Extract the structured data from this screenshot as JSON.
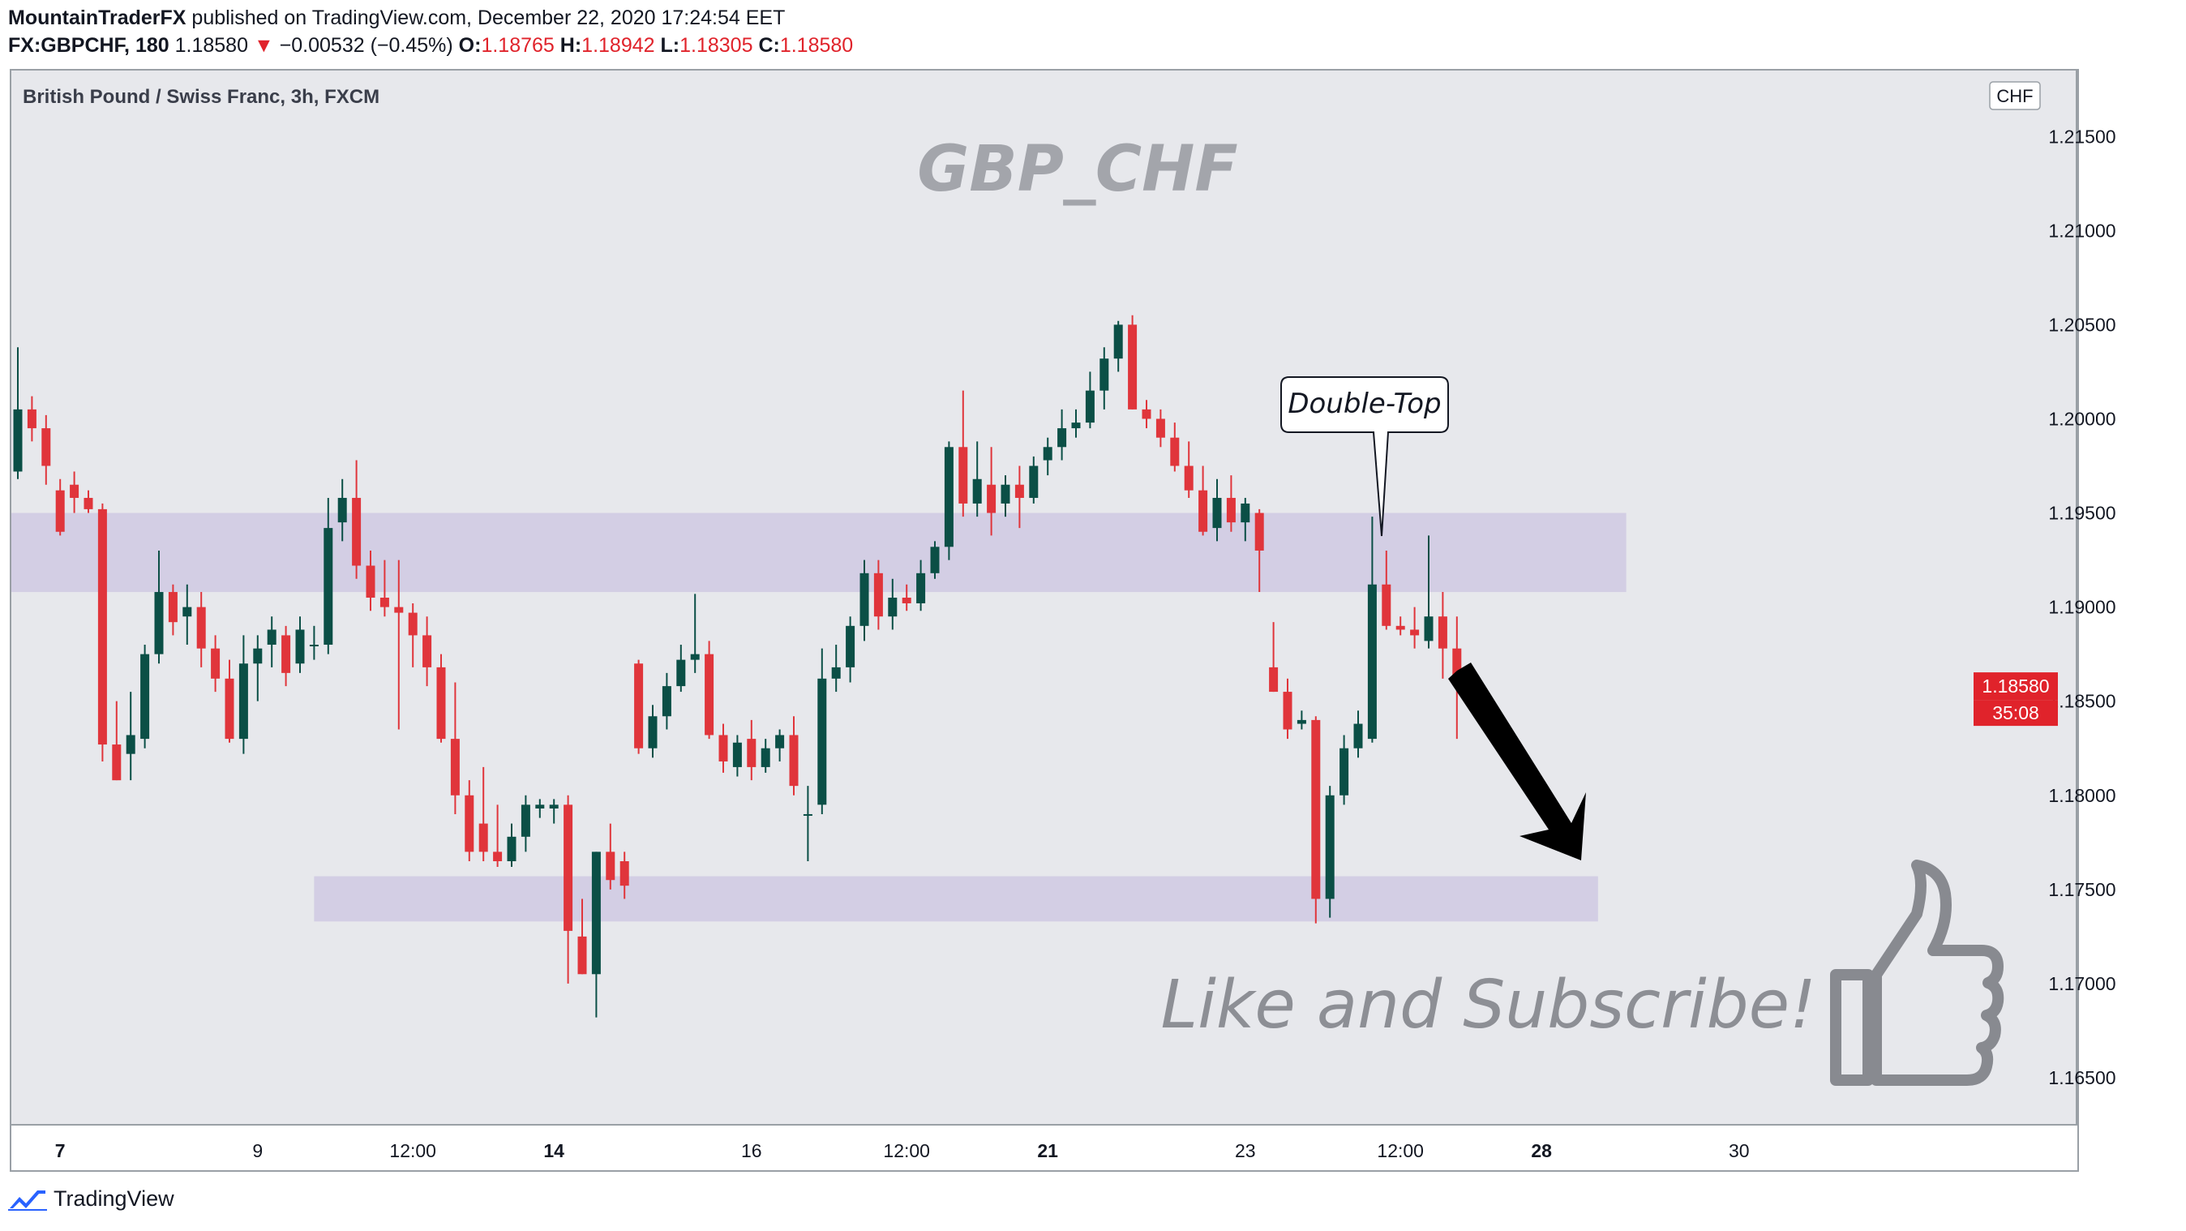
{
  "header": {
    "author": "MountainTraderFX",
    "published": " published on TradingView.com, December 22, 2020 17:24:54 EET",
    "symbol": "FX:GBPCHF, 180",
    "last": "1.18580",
    "change_arrow": "▼",
    "change": "−0.00532 (−0.45%)",
    "o_label": "O:",
    "o": "1.18765",
    "h_label": "H:",
    "h": "1.18942",
    "l_label": "L:",
    "l": "1.18305",
    "c_label": "C:",
    "c": "1.18580"
  },
  "footer": {
    "brand": "TradingView",
    "logo_icon": "tradingview-logo-icon"
  },
  "colors": {
    "up": "#0b4f46",
    "down": "#e0353b",
    "zone": "#cfc9e3",
    "bg": "#e7e8ec",
    "price_tag": "#e0232b"
  },
  "chart_data": {
    "type": "candlestick",
    "title": "British Pound / Swiss Franc, 3h, FXCM",
    "watermark": "GBP_CHF",
    "currency": "CHF",
    "ylim": [
      1.1625,
      1.2185
    ],
    "y_ticks": [
      "1.21500",
      "1.21000",
      "1.20500",
      "1.20000",
      "1.19500",
      "1.19000",
      "1.18500",
      "1.18000",
      "1.17500",
      "1.17000",
      "1.16500"
    ],
    "x_ticks": [
      {
        "label": "7",
        "i": 3
      },
      {
        "label": "9",
        "i": 17
      },
      {
        "label": "12:00",
        "i": 28
      },
      {
        "label": "14",
        "i": 38
      },
      {
        "label": "16",
        "i": 52
      },
      {
        "label": "12:00",
        "i": 63
      },
      {
        "label": "21",
        "i": 73
      },
      {
        "label": "23",
        "i": 87
      },
      {
        "label": "12:00",
        "i": 98
      },
      {
        "label": "28",
        "i": 108
      },
      {
        "label": "30",
        "i": 122
      }
    ],
    "current_price": "1.18580",
    "countdown": "35:08",
    "zones": [
      {
        "from": 1.1908,
        "to": 1.195,
        "i_start": -1,
        "i_end": 114
      },
      {
        "from": 1.1733,
        "to": 1.1757,
        "i_start": 21,
        "i_end": 112
      }
    ],
    "annotations": {
      "callout": "Double-Top",
      "cta": "Like and Subscribe!"
    },
    "candles": [
      [
        1.1972,
        1.2038,
        1.1968,
        1.2005
      ],
      [
        1.2005,
        1.2012,
        1.1988,
        1.1995
      ],
      [
        1.1995,
        1.2002,
        1.1965,
        1.1975
      ],
      [
        1.1962,
        1.1968,
        1.1938,
        1.194
      ],
      [
        1.1965,
        1.1972,
        1.195,
        1.1958
      ],
      [
        1.1958,
        1.1962,
        1.195,
        1.1952
      ],
      [
        1.1952,
        1.1955,
        1.1818,
        1.1827
      ],
      [
        1.1827,
        1.185,
        1.1808,
        1.1808
      ],
      [
        1.1822,
        1.1855,
        1.1808,
        1.1832
      ],
      [
        1.183,
        1.188,
        1.1825,
        1.1875
      ],
      [
        1.1875,
        1.193,
        1.187,
        1.1908
      ],
      [
        1.1908,
        1.1912,
        1.1885,
        1.1892
      ],
      [
        1.1895,
        1.1912,
        1.188,
        1.19
      ],
      [
        1.19,
        1.1908,
        1.1868,
        1.1878
      ],
      [
        1.1878,
        1.1885,
        1.1855,
        1.1862
      ],
      [
        1.1862,
        1.1872,
        1.1828,
        1.183
      ],
      [
        1.183,
        1.1885,
        1.1822,
        1.187
      ],
      [
        1.187,
        1.1885,
        1.185,
        1.1878
      ],
      [
        1.188,
        1.1895,
        1.1868,
        1.1888
      ],
      [
        1.1885,
        1.189,
        1.1858,
        1.1865
      ],
      [
        1.187,
        1.1895,
        1.1865,
        1.1888
      ],
      [
        1.188,
        1.189,
        1.1872,
        1.188
      ],
      [
        1.188,
        1.1958,
        1.1875,
        1.1942
      ],
      [
        1.1945,
        1.1968,
        1.1935,
        1.1958
      ],
      [
        1.1958,
        1.1978,
        1.1915,
        1.1922
      ],
      [
        1.1922,
        1.193,
        1.1898,
        1.1905
      ],
      [
        1.1905,
        1.1925,
        1.1895,
        1.19
      ],
      [
        1.19,
        1.1925,
        1.1835,
        1.1897
      ],
      [
        1.1897,
        1.1902,
        1.1868,
        1.1885
      ],
      [
        1.1885,
        1.1895,
        1.1858,
        1.1868
      ],
      [
        1.1868,
        1.1875,
        1.1828,
        1.183
      ],
      [
        1.183,
        1.186,
        1.179,
        1.18
      ],
      [
        1.18,
        1.1808,
        1.1765,
        1.177
      ],
      [
        1.1785,
        1.1815,
        1.1765,
        1.177
      ],
      [
        1.177,
        1.1795,
        1.1762,
        1.1765
      ],
      [
        1.1765,
        1.1785,
        1.1762,
        1.1778
      ],
      [
        1.1778,
        1.18,
        1.177,
        1.1795
      ],
      [
        1.1793,
        1.1798,
        1.1788,
        1.1795
      ],
      [
        1.1793,
        1.1798,
        1.1785,
        1.1795
      ],
      [
        1.1795,
        1.18,
        1.17,
        1.1728
      ],
      [
        1.1725,
        1.1745,
        1.1705,
        1.1705
      ],
      [
        1.1705,
        1.177,
        1.1682,
        1.177
      ],
      [
        1.177,
        1.1785,
        1.175,
        1.1755
      ],
      [
        1.1765,
        1.177,
        1.1745,
        1.1752
      ],
      [
        1.187,
        1.1872,
        1.1822,
        1.1825
      ],
      [
        1.1825,
        1.1848,
        1.182,
        1.1842
      ],
      [
        1.1842,
        1.1865,
        1.1835,
        1.1858
      ],
      [
        1.1858,
        1.188,
        1.1855,
        1.1872
      ],
      [
        1.1872,
        1.1907,
        1.1865,
        1.1875
      ],
      [
        1.1875,
        1.1882,
        1.183,
        1.1832
      ],
      [
        1.1832,
        1.1838,
        1.1812,
        1.1818
      ],
      [
        1.1815,
        1.1832,
        1.181,
        1.1828
      ],
      [
        1.183,
        1.184,
        1.1808,
        1.1815
      ],
      [
        1.1815,
        1.183,
        1.1812,
        1.1825
      ],
      [
        1.1825,
        1.1835,
        1.1818,
        1.1832
      ],
      [
        1.1832,
        1.1842,
        1.18,
        1.1805
      ],
      [
        1.179,
        1.1805,
        1.1765,
        1.179
      ],
      [
        1.1795,
        1.1878,
        1.179,
        1.1862
      ],
      [
        1.1862,
        1.188,
        1.1855,
        1.1868
      ],
      [
        1.1868,
        1.1895,
        1.186,
        1.189
      ],
      [
        1.189,
        1.1925,
        1.1882,
        1.1918
      ],
      [
        1.1918,
        1.1925,
        1.1888,
        1.1895
      ],
      [
        1.1895,
        1.1915,
        1.1888,
        1.1905
      ],
      [
        1.1905,
        1.1912,
        1.1898,
        1.1902
      ],
      [
        1.1902,
        1.1925,
        1.1898,
        1.1918
      ],
      [
        1.1918,
        1.1935,
        1.1915,
        1.1932
      ],
      [
        1.1932,
        1.1988,
        1.1925,
        1.1985
      ],
      [
        1.1985,
        1.2015,
        1.1948,
        1.1955
      ],
      [
        1.1955,
        1.1988,
        1.1948,
        1.1968
      ],
      [
        1.1965,
        1.1985,
        1.1938,
        1.195
      ],
      [
        1.1955,
        1.197,
        1.1948,
        1.1965
      ],
      [
        1.1965,
        1.1975,
        1.1942,
        1.1958
      ],
      [
        1.1958,
        1.198,
        1.1955,
        1.1975
      ],
      [
        1.1978,
        1.199,
        1.197,
        1.1985
      ],
      [
        1.1985,
        1.2005,
        1.1978,
        1.1995
      ],
      [
        1.1995,
        1.2005,
        1.199,
        1.1998
      ],
      [
        1.1998,
        1.2025,
        1.1995,
        1.2015
      ],
      [
        1.2015,
        1.2038,
        1.2005,
        1.2032
      ],
      [
        1.2032,
        1.2052,
        1.2025,
        1.205
      ],
      [
        1.205,
        1.2055,
        1.2005,
        1.2005
      ],
      [
        1.2005,
        1.201,
        1.1995,
        1.2
      ],
      [
        1.2,
        1.2005,
        1.1985,
        1.199
      ],
      [
        1.199,
        1.1998,
        1.1972,
        1.1975
      ],
      [
        1.1975,
        1.1988,
        1.1958,
        1.1962
      ],
      [
        1.1962,
        1.1975,
        1.1938,
        1.194
      ],
      [
        1.1942,
        1.1968,
        1.1935,
        1.1958
      ],
      [
        1.1958,
        1.197,
        1.194,
        1.1945
      ],
      [
        1.1945,
        1.1958,
        1.1935,
        1.1955
      ],
      [
        1.195,
        1.1952,
        1.1908,
        1.193
      ],
      [
        1.1868,
        1.1892,
        1.1855,
        1.1855
      ],
      [
        1.1855,
        1.1862,
        1.183,
        1.1835
      ],
      [
        1.1838,
        1.1845,
        1.1835,
        1.184
      ],
      [
        1.184,
        1.1842,
        1.1732,
        1.1745
      ],
      [
        1.1745,
        1.1805,
        1.1735,
        1.18
      ],
      [
        1.18,
        1.1832,
        1.1795,
        1.1825
      ],
      [
        1.1825,
        1.1845,
        1.182,
        1.1838
      ],
      [
        1.183,
        1.1948,
        1.1828,
        1.1912
      ],
      [
        1.1912,
        1.193,
        1.1888,
        1.189
      ],
      [
        1.189,
        1.1895,
        1.1885,
        1.1888
      ],
      [
        1.1888,
        1.19,
        1.1878,
        1.1885
      ],
      [
        1.1882,
        1.1938,
        1.1878,
        1.1895
      ],
      [
        1.1895,
        1.1908,
        1.1862,
        1.1878
      ],
      [
        1.1878,
        1.1895,
        1.183,
        1.1862
      ]
    ]
  }
}
